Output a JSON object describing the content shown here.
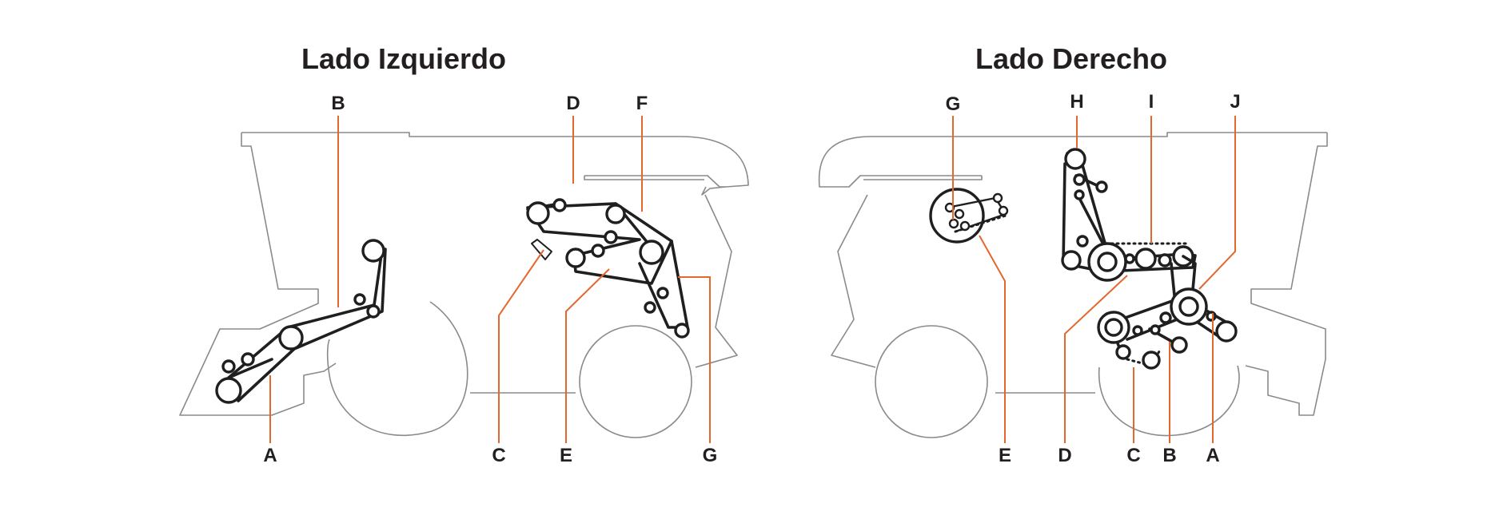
{
  "colors": {
    "accent": "#e4672c",
    "text": "#231f20",
    "outline": "#8a8a8a",
    "belt": "#1f1f1f"
  },
  "left": {
    "title": "Lado Izquierdo",
    "labels": {
      "a": "A",
      "b": "B",
      "c": "C",
      "d": "D",
      "e": "E",
      "f": "F",
      "g": "G"
    }
  },
  "right": {
    "title": "Lado Derecho",
    "labels": {
      "a": "A",
      "b": "B",
      "c": "C",
      "d": "D",
      "e": "E",
      "g": "G",
      "h": "H",
      "i": "I",
      "j": "J"
    }
  }
}
